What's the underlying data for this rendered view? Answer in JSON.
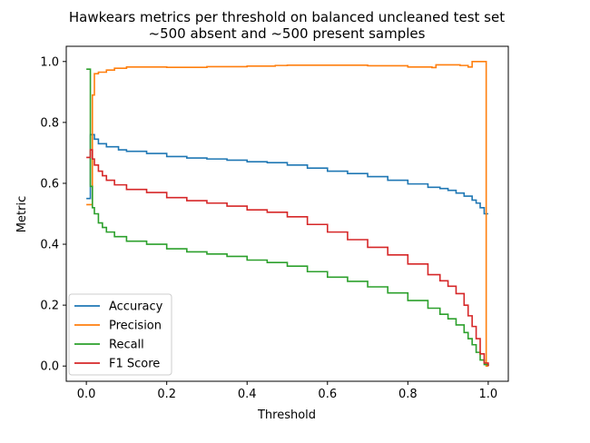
{
  "chart_data": {
    "type": "line",
    "title": "Hawkears metrics per threshold on balanced uncleaned test set",
    "subtitle": "~500 absent and ~500 present samples",
    "xlabel": "Threshold",
    "ylabel": "Metric",
    "xlim": [
      -0.05,
      1.05
    ],
    "ylim": [
      -0.05,
      1.05
    ],
    "xticks": [
      0.0,
      0.2,
      0.4,
      0.6,
      0.8,
      1.0
    ],
    "xtick_labels": [
      "0.0",
      "0.2",
      "0.4",
      "0.6",
      "0.8",
      "1.0"
    ],
    "yticks": [
      0.0,
      0.2,
      0.4,
      0.6,
      0.8,
      1.0
    ],
    "ytick_labels": [
      "0.0",
      "0.2",
      "0.4",
      "0.6",
      "0.8",
      "1.0"
    ],
    "grid": false,
    "legend_position": "lower-left",
    "series": [
      {
        "name": "Accuracy",
        "color": "#1f77b4",
        "x": [
          0.0,
          0.005,
          0.01,
          0.02,
          0.03,
          0.05,
          0.08,
          0.1,
          0.15,
          0.2,
          0.25,
          0.3,
          0.35,
          0.4,
          0.45,
          0.5,
          0.55,
          0.6,
          0.65,
          0.7,
          0.75,
          0.8,
          0.85,
          0.88,
          0.9,
          0.92,
          0.94,
          0.96,
          0.97,
          0.98,
          0.99,
          1.0
        ],
        "y": [
          0.55,
          0.55,
          0.76,
          0.745,
          0.73,
          0.72,
          0.71,
          0.705,
          0.698,
          0.688,
          0.683,
          0.68,
          0.676,
          0.671,
          0.668,
          0.66,
          0.65,
          0.64,
          0.632,
          0.622,
          0.61,
          0.598,
          0.587,
          0.583,
          0.577,
          0.568,
          0.558,
          0.545,
          0.535,
          0.52,
          0.5,
          0.5
        ]
      },
      {
        "name": "Precision",
        "color": "#ff7f0e",
        "x": [
          0.0,
          0.005,
          0.01,
          0.015,
          0.02,
          0.03,
          0.05,
          0.07,
          0.1,
          0.2,
          0.3,
          0.4,
          0.47,
          0.5,
          0.6,
          0.7,
          0.8,
          0.86,
          0.87,
          0.9,
          0.93,
          0.95,
          0.96,
          0.97,
          0.98,
          0.99,
          0.995,
          1.0
        ],
        "y": [
          0.53,
          0.53,
          0.53,
          0.89,
          0.96,
          0.965,
          0.972,
          0.978,
          0.982,
          0.981,
          0.983,
          0.985,
          0.987,
          0.988,
          0.988,
          0.986,
          0.982,
          0.98,
          0.989,
          0.989,
          0.987,
          0.982,
          1.0,
          1.0,
          1.0,
          1.0,
          0.0,
          0.0
        ]
      },
      {
        "name": "Recall",
        "color": "#2ca02c",
        "x": [
          0.0,
          0.005,
          0.01,
          0.015,
          0.02,
          0.03,
          0.04,
          0.05,
          0.07,
          0.1,
          0.15,
          0.2,
          0.25,
          0.3,
          0.35,
          0.4,
          0.45,
          0.5,
          0.55,
          0.6,
          0.65,
          0.7,
          0.75,
          0.8,
          0.85,
          0.88,
          0.9,
          0.92,
          0.94,
          0.95,
          0.96,
          0.97,
          0.98,
          0.99,
          1.0
        ],
        "y": [
          0.975,
          0.975,
          0.59,
          0.52,
          0.5,
          0.47,
          0.455,
          0.44,
          0.425,
          0.41,
          0.4,
          0.385,
          0.375,
          0.368,
          0.36,
          0.348,
          0.34,
          0.328,
          0.31,
          0.292,
          0.278,
          0.26,
          0.24,
          0.215,
          0.19,
          0.17,
          0.155,
          0.135,
          0.11,
          0.09,
          0.07,
          0.045,
          0.02,
          0.005,
          0.0
        ]
      },
      {
        "name": "F1 Score",
        "color": "#d62728",
        "x": [
          0.0,
          0.005,
          0.01,
          0.015,
          0.02,
          0.03,
          0.04,
          0.05,
          0.07,
          0.1,
          0.15,
          0.2,
          0.25,
          0.3,
          0.35,
          0.4,
          0.45,
          0.5,
          0.55,
          0.6,
          0.65,
          0.7,
          0.75,
          0.8,
          0.85,
          0.88,
          0.9,
          0.92,
          0.94,
          0.95,
          0.96,
          0.97,
          0.98,
          0.99,
          1.0
        ],
        "y": [
          0.685,
          0.685,
          0.71,
          0.68,
          0.66,
          0.64,
          0.625,
          0.61,
          0.595,
          0.58,
          0.57,
          0.553,
          0.543,
          0.535,
          0.525,
          0.513,
          0.505,
          0.49,
          0.465,
          0.44,
          0.415,
          0.39,
          0.365,
          0.335,
          0.3,
          0.28,
          0.262,
          0.238,
          0.2,
          0.165,
          0.13,
          0.09,
          0.04,
          0.01,
          0.0
        ]
      }
    ]
  }
}
